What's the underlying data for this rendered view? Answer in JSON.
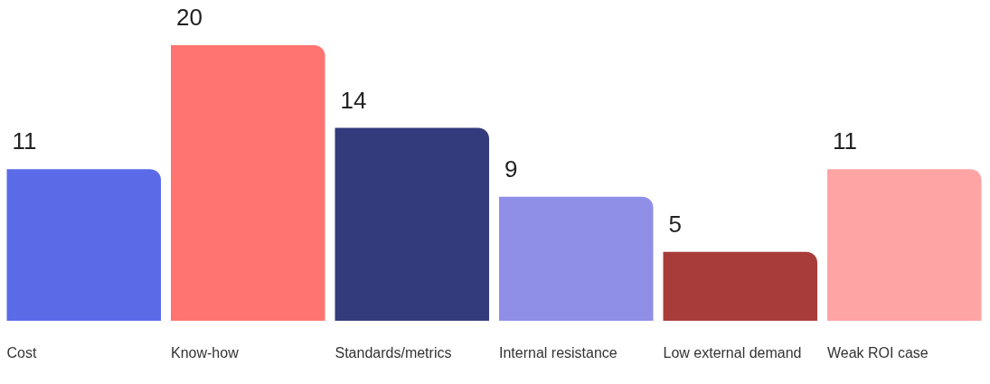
{
  "chart_data": {
    "type": "bar",
    "categories": [
      "Cost",
      "Know-how",
      "Standards/metrics",
      "Internal resistance",
      "Low external demand",
      "Weak ROI case"
    ],
    "values": [
      11,
      20,
      14,
      9,
      5,
      11
    ],
    "colors": [
      "#5b6be8",
      "#ff7470",
      "#343b7c",
      "#8f8fe8",
      "#a83c3a",
      "#ffa4a4"
    ],
    "data_labels": true
  }
}
